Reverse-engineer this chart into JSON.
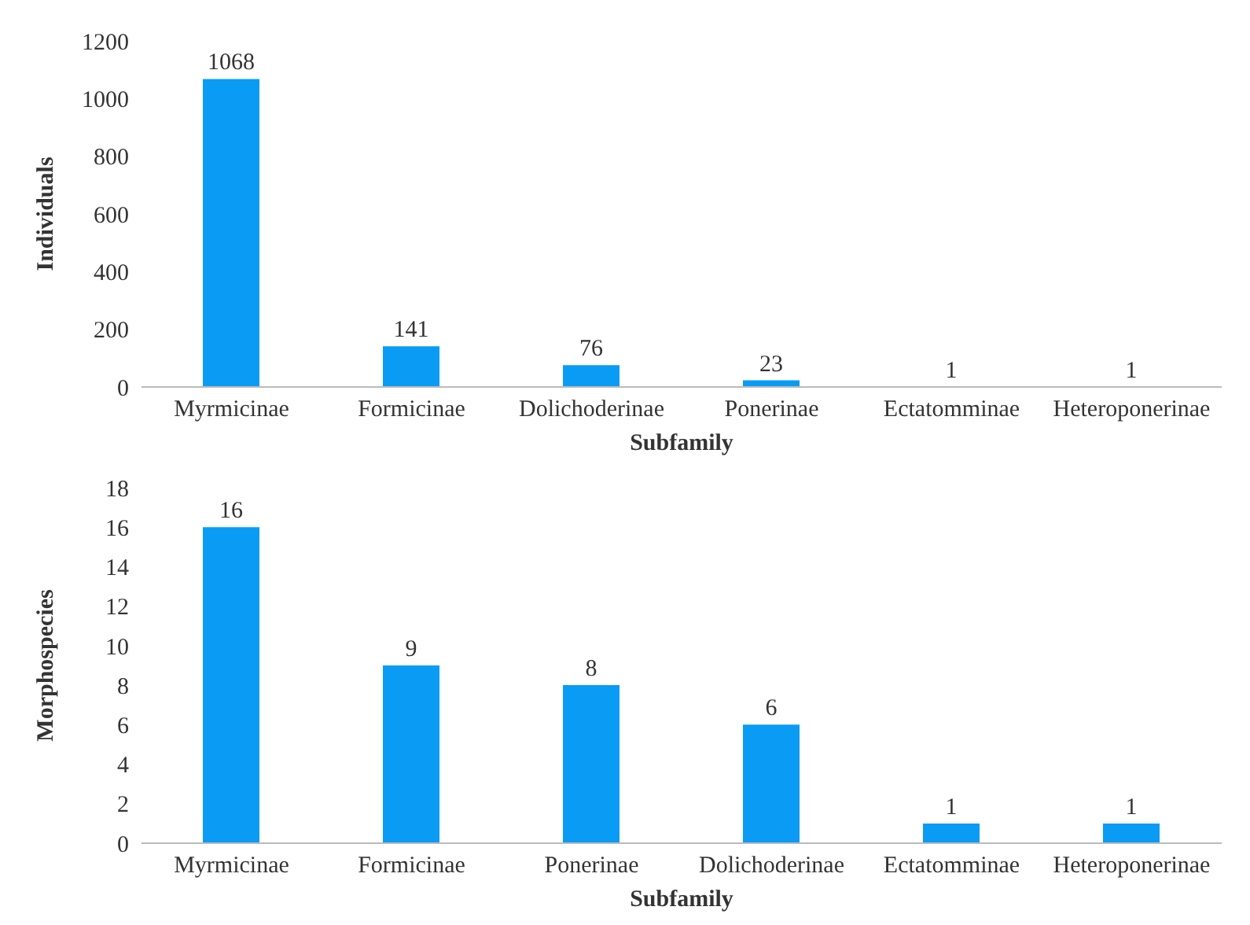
{
  "chart_data": [
    {
      "type": "bar",
      "xlabel": "Subfamily",
      "ylabel": "Individuals",
      "categories": [
        "Myrmicinae",
        "Formicinae",
        "Dolichoderinae",
        "Ponerinae",
        "Ectatomminae",
        "Heteroponerinae"
      ],
      "values": [
        1068,
        141,
        76,
        23,
        1,
        1
      ],
      "color": "#0a9bf5",
      "ylim": [
        0,
        1200
      ],
      "yticks": [
        0,
        200,
        400,
        600,
        800,
        1000,
        1200
      ],
      "data_labels": true,
      "grid": false,
      "legend": false
    },
    {
      "type": "bar",
      "xlabel": "Subfamily",
      "ylabel": "Morphospecies",
      "categories": [
        "Myrmicinae",
        "Formicinae",
        "Ponerinae",
        "Dolichoderinae",
        "Ectatomminae",
        "Heteroponerinae"
      ],
      "values": [
        16,
        9,
        8,
        6,
        1,
        1
      ],
      "color": "#0a9bf5",
      "ylim": [
        0,
        18
      ],
      "yticks": [
        0,
        2,
        4,
        6,
        8,
        10,
        12,
        14,
        16,
        18
      ],
      "data_labels": true,
      "grid": false,
      "legend": false
    }
  ]
}
